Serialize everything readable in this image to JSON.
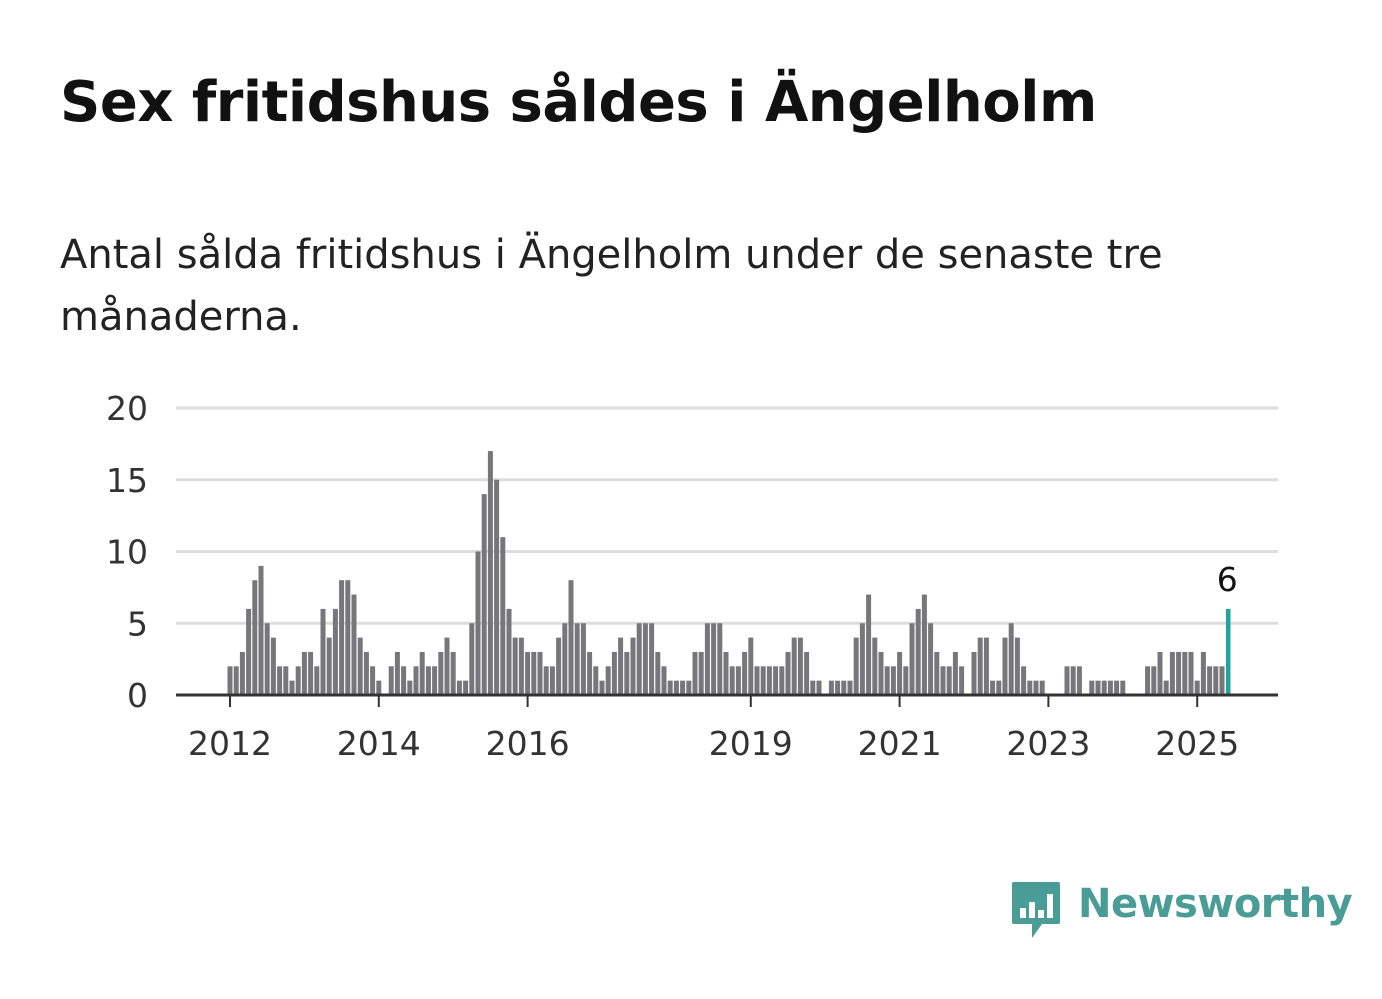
{
  "title": "Sex fritidshus såldes i Ängelholm",
  "subtitle": "Antal sålda fritidshus i Ängelholm under de senaste tre månaderna.",
  "brand": {
    "name": "Newsworthy",
    "color": "#4a9c96",
    "icon": "newsworthy-logo-icon"
  },
  "colors": {
    "bar": "#77767b",
    "highlight": "#23a39f",
    "grid": "#dddddd",
    "axis": "#333333"
  },
  "chart_data": {
    "type": "bar",
    "title": "",
    "xlabel": "",
    "ylabel": "",
    "ylim": [
      0,
      20
    ],
    "yticks": [
      0,
      5,
      10,
      15,
      20
    ],
    "xticks": [
      "2012",
      "2014",
      "2016",
      "2019",
      "2021",
      "2023",
      "2025"
    ],
    "start": "2012-01",
    "frequency": "monthly",
    "values": [
      2,
      2,
      3,
      6,
      8,
      9,
      5,
      4,
      2,
      2,
      1,
      2,
      3,
      3,
      2,
      6,
      4,
      6,
      8,
      8,
      7,
      4,
      3,
      2,
      1,
      0,
      2,
      3,
      2,
      1,
      2,
      3,
      2,
      2,
      3,
      4,
      3,
      1,
      1,
      5,
      10,
      14,
      17,
      15,
      11,
      6,
      4,
      4,
      3,
      3,
      3,
      2,
      2,
      4,
      5,
      8,
      5,
      5,
      3,
      2,
      1,
      2,
      3,
      4,
      3,
      4,
      5,
      5,
      5,
      3,
      2,
      1,
      1,
      1,
      1,
      3,
      3,
      5,
      5,
      5,
      3,
      2,
      2,
      3,
      4,
      2,
      2,
      2,
      2,
      2,
      3,
      4,
      4,
      3,
      1,
      1,
      0,
      1,
      1,
      1,
      1,
      4,
      5,
      7,
      4,
      3,
      2,
      2,
      3,
      2,
      5,
      6,
      7,
      5,
      3,
      2,
      2,
      3,
      2,
      0,
      3,
      4,
      4,
      1,
      1,
      4,
      5,
      4,
      2,
      1,
      1,
      1,
      0,
      0,
      0,
      2,
      2,
      2,
      0,
      1,
      1,
      1,
      1,
      1,
      1,
      0,
      0,
      0,
      2,
      2,
      3,
      1,
      3,
      3,
      3,
      3,
      1,
      3,
      2,
      2,
      2,
      6
    ],
    "highlight": {
      "label": "6",
      "value": 6,
      "index_from_end": 1
    }
  }
}
